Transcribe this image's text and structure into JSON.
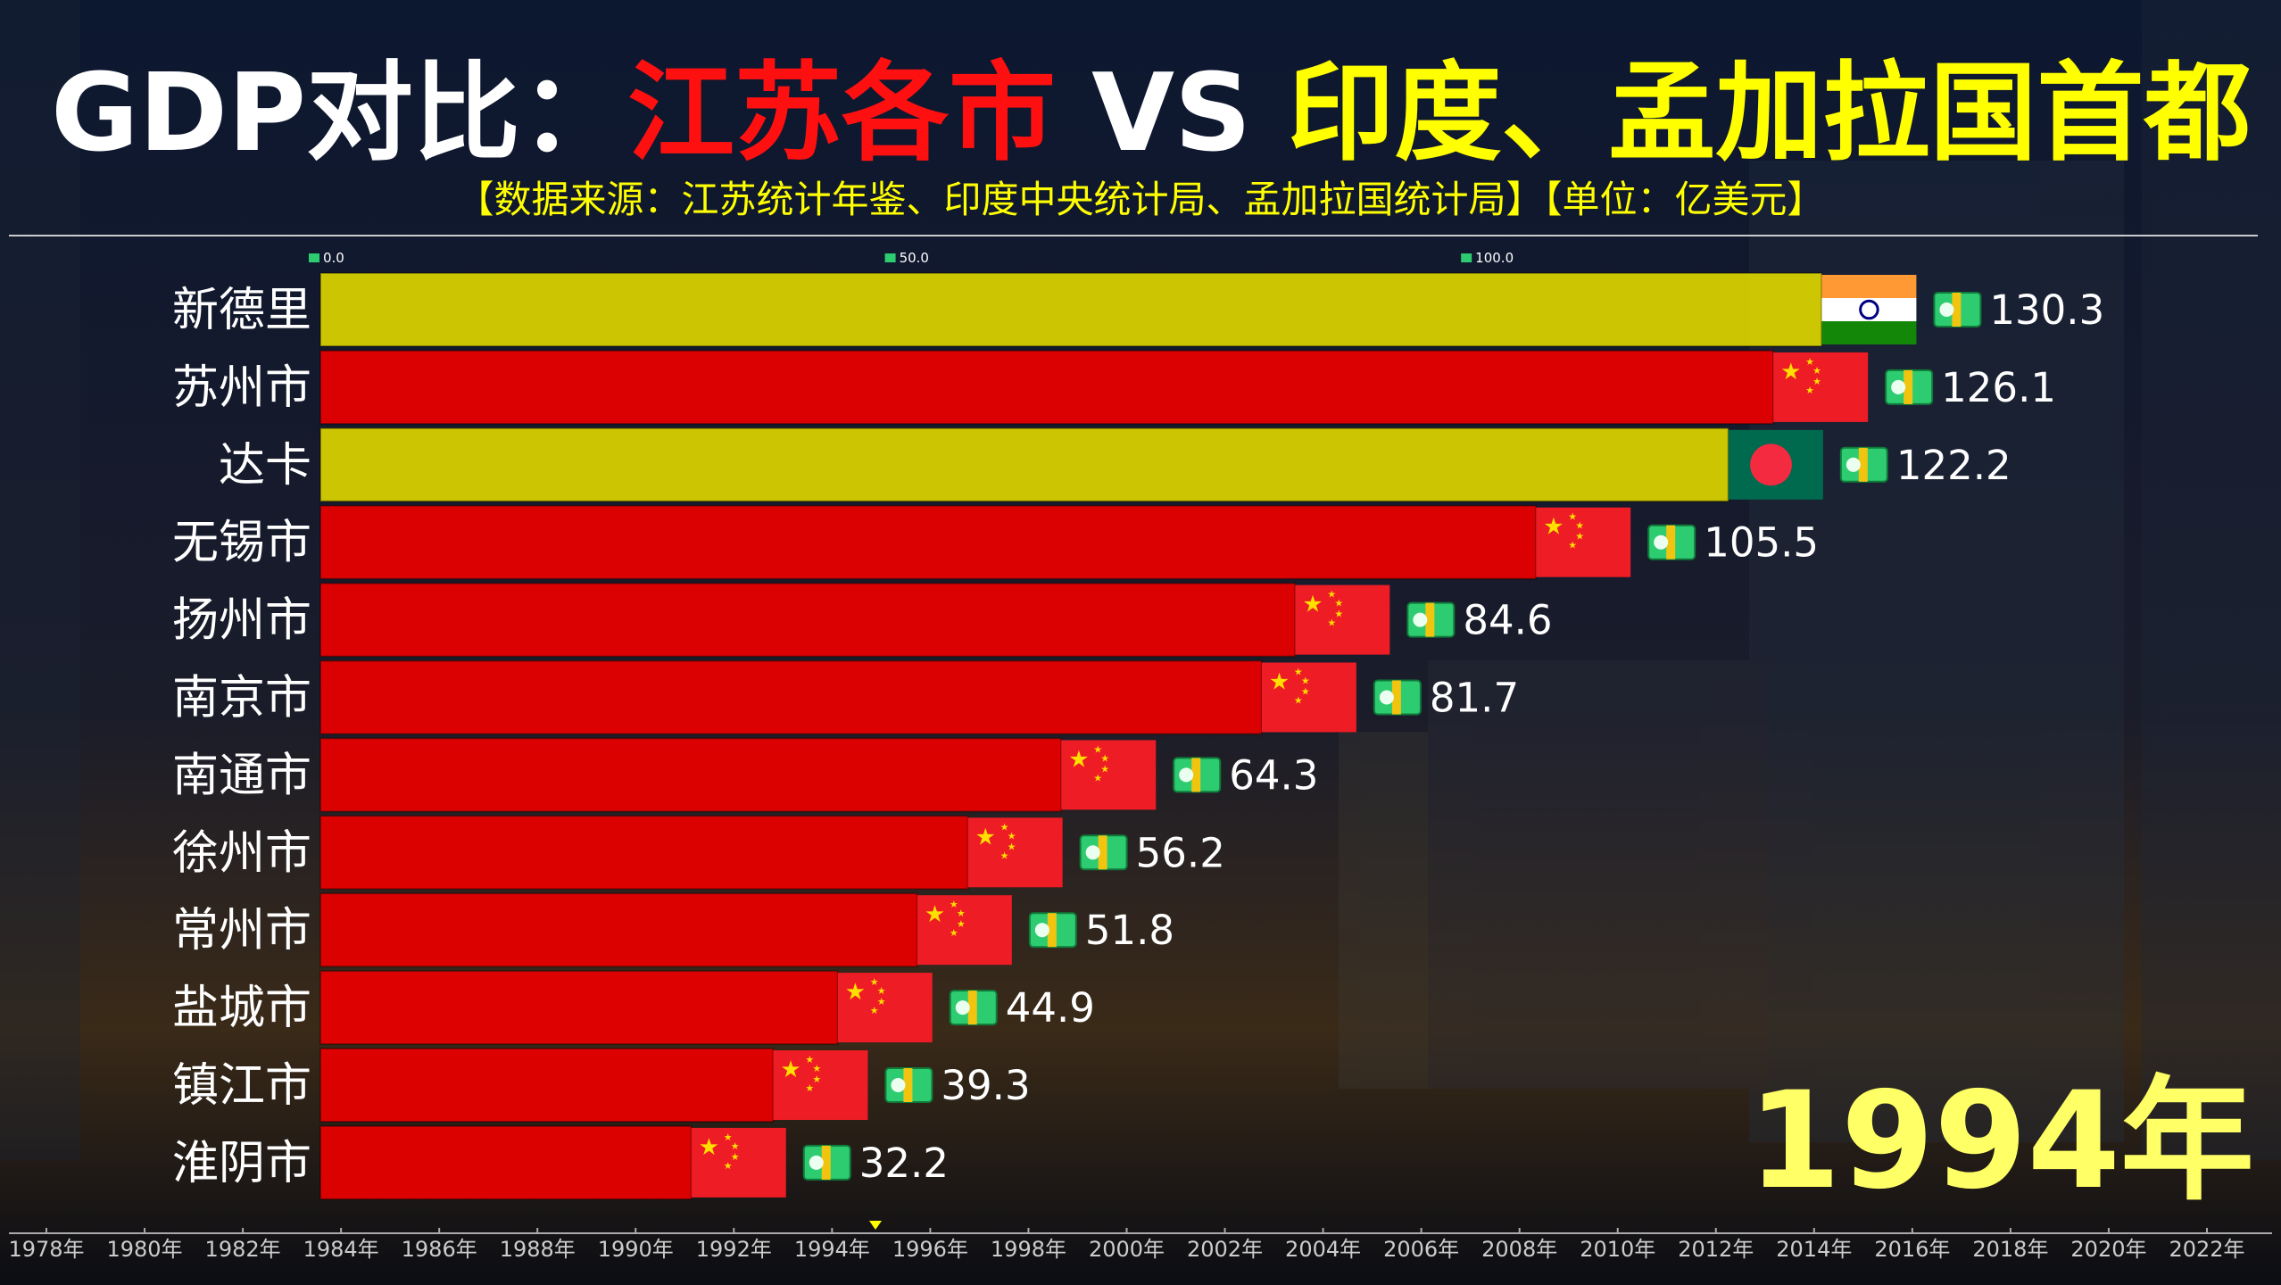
{
  "chart_data": {
    "type": "bar",
    "title": [
      {
        "text": "GDP对比：",
        "color": "#ffffff"
      },
      {
        "text": "江苏各市",
        "color": "#ff1010"
      },
      {
        "text": "VS",
        "color": "#ffffff"
      },
      {
        "text": "印度、孟加拉国首都",
        "color": "#ffff00"
      }
    ],
    "subtitle": "【数据来源：江苏统计年鉴、印度中央统计局、孟加拉国统计局】【单位：亿美元】",
    "categories": [
      "新德里",
      "苏州市",
      "达卡",
      "无锡市",
      "扬州市",
      "南京市",
      "南通市",
      "徐州市",
      "常州市",
      "盐城市",
      "镇江市",
      "淮阴市"
    ],
    "values": [
      130.3,
      126.1,
      122.2,
      105.5,
      84.6,
      81.7,
      64.3,
      56.2,
      51.8,
      44.9,
      39.3,
      32.2
    ],
    "colors": [
      "#d6d000",
      "#e60000",
      "#d6d000",
      "#e60000",
      "#e60000",
      "#e60000",
      "#e60000",
      "#e60000",
      "#e60000",
      "#e60000",
      "#e60000",
      "#e60000"
    ],
    "xlim": [
      0,
      170
    ],
    "xticks": [
      {
        "value": 0,
        "label": "0.0"
      },
      {
        "value": 50,
        "label": "50.0"
      },
      {
        "value": 100,
        "label": "100.0"
      }
    ],
    "current_year": "1994年",
    "timeline": [
      "1978年",
      "1980年",
      "1982年",
      "1984年",
      "1986年",
      "1988年",
      "1990年",
      "1992年",
      "1994年",
      "1996年",
      "1998年",
      "2000年",
      "2002年",
      "2004年",
      "2006年",
      "2008年",
      "2010年",
      "2012年",
      "2014年",
      "2016年",
      "2018年",
      "2020年",
      "2022年"
    ]
  }
}
